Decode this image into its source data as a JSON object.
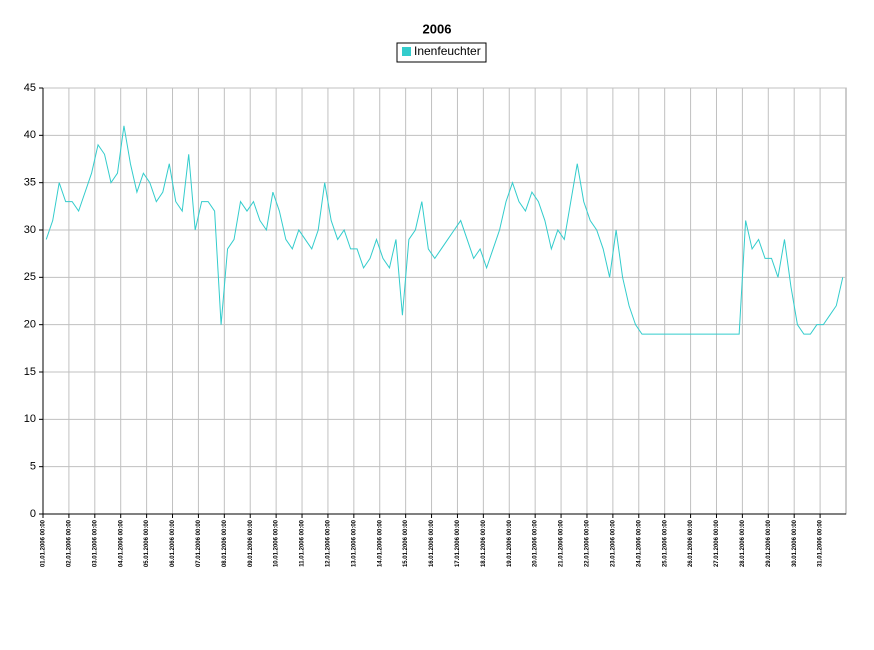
{
  "chart_data": {
    "type": "line",
    "title": "2006",
    "categories": [
      "01.01.2006 00:00",
      null,
      null,
      null,
      "02.01.2006 00:00",
      null,
      null,
      null,
      "03.01.2006 00:00",
      null,
      null,
      null,
      "04.01.2006 00:00",
      null,
      null,
      null,
      "05.01.2006 00:00",
      null,
      null,
      null,
      "06.01.2006 00:00",
      null,
      null,
      null,
      "07.01.2006 00:00",
      null,
      null,
      null,
      "08.01.2006 00:00",
      null,
      null,
      null,
      "09.01.2006 00:00",
      null,
      null,
      null,
      "10.01.2006 00:00",
      null,
      null,
      null,
      "11.01.2006 00:00",
      null,
      null,
      null,
      "12.01.2006 00:00",
      null,
      null,
      null,
      "13.01.2006 00:00",
      null,
      null,
      null,
      "14.01.2006 00:00",
      null,
      null,
      null,
      "15.01.2006 00:00",
      null,
      null,
      null,
      "16.01.2006 00:00",
      null,
      null,
      null,
      "17.01.2006 00:00",
      null,
      null,
      null,
      "18.01.2006 00:00",
      null,
      null,
      null,
      "19.01.2006 00:00",
      null,
      null,
      null,
      "20.01.2006 00:00",
      null,
      null,
      null,
      "21.01.2006 00:00",
      null,
      null,
      null,
      "22.01.2006 00:00",
      null,
      null,
      null,
      "23.01.2006 00:00",
      null,
      null,
      null,
      "24.01.2006 00:00",
      null,
      null,
      null,
      "25.01.2006 00:00",
      null,
      null,
      null,
      "26.01.2006 00:00",
      null,
      null,
      null,
      "27.01.2006 00:00",
      null,
      null,
      null,
      "28.01.2006 00:00",
      null,
      null,
      null,
      "29.01.2006 00:00",
      null,
      null,
      null,
      "30.01.2006 00:00",
      null,
      null,
      null,
      "31.01.2006 00:00",
      null,
      null,
      null
    ],
    "series": [
      {
        "name": "Inenfeuchter",
        "color": "#33cccc",
        "values": [
          29,
          31,
          35,
          33,
          33,
          32,
          34,
          36,
          39,
          38,
          35,
          36,
          41,
          37,
          34,
          36,
          35,
          33,
          34,
          37,
          33,
          32,
          38,
          30,
          33,
          33,
          32,
          20,
          28,
          29,
          33,
          32,
          33,
          31,
          30,
          34,
          32,
          29,
          28,
          30,
          29,
          28,
          30,
          35,
          31,
          29,
          30,
          28,
          28,
          26,
          27,
          29,
          27,
          26,
          29,
          21,
          29,
          30,
          33,
          28,
          27,
          28,
          29,
          30,
          31,
          29,
          27,
          28,
          26,
          28,
          30,
          33,
          35,
          33,
          32,
          34,
          33,
          31,
          28,
          30,
          29,
          33,
          37,
          33,
          31,
          30,
          28,
          25,
          30,
          25,
          22,
          20,
          19,
          19,
          19,
          19,
          19,
          19,
          19,
          19,
          19,
          19,
          19,
          19,
          19,
          19,
          19,
          19,
          31,
          28,
          29,
          27,
          27,
          25,
          29,
          24,
          20,
          19,
          19,
          20,
          20,
          21,
          22,
          25
        ]
      }
    ],
    "ylim": [
      0,
      45
    ],
    "yticks": [
      0,
      5,
      10,
      15,
      20,
      25,
      30,
      35,
      40,
      45
    ],
    "grid": true
  }
}
